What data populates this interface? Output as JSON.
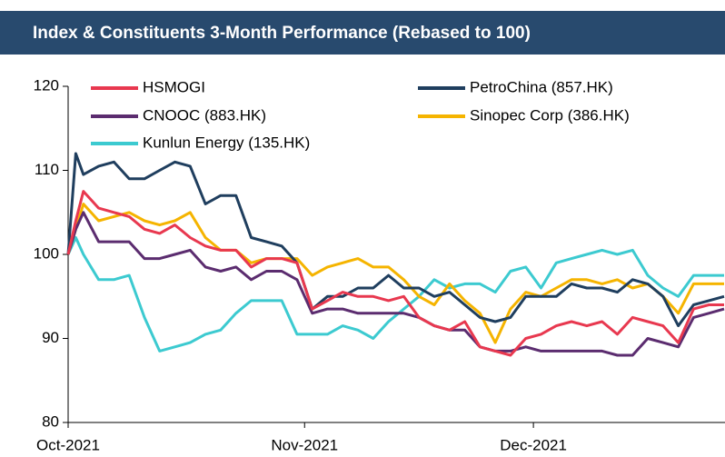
{
  "chart_data": {
    "type": "line",
    "title": "Index & Constituents 3-Month Performance (Rebased to 100)",
    "x": [
      0,
      1,
      2,
      4,
      6,
      8,
      10,
      12,
      14,
      16,
      18,
      20,
      22,
      24,
      26,
      28,
      30,
      32,
      34,
      36,
      38,
      40,
      42,
      44,
      46,
      48,
      50,
      52,
      54,
      56,
      58,
      60,
      62,
      64,
      66,
      68,
      70,
      72,
      74,
      76,
      78,
      80,
      82,
      84,
      86
    ],
    "xlim": [
      0,
      86
    ],
    "xticks": [
      {
        "value": 0,
        "label": "Oct-2021"
      },
      {
        "value": 31,
        "label": "Nov-2021"
      },
      {
        "value": 61,
        "label": "Dec-2021"
      }
    ],
    "ylim": [
      80,
      120
    ],
    "yticks": [
      80,
      90,
      100,
      110,
      120
    ],
    "grid": false,
    "legend": "top-left",
    "series": [
      {
        "name": "HSMOGI",
        "color": "#e8384f",
        "values": [
          100,
          104,
          107.5,
          105.5,
          105,
          104.5,
          103,
          102.5,
          103.5,
          102,
          101,
          100.5,
          100.5,
          98.5,
          99.5,
          99.5,
          99,
          93.5,
          94.5,
          95.5,
          95,
          95,
          94.5,
          95,
          92.5,
          91.5,
          91,
          92,
          89,
          88.5,
          88,
          90,
          90.5,
          91.5,
          92,
          91.5,
          92,
          90.5,
          92.5,
          92,
          91.5,
          89.5,
          93.5,
          94,
          94
        ]
      },
      {
        "name": "PetroChina (857.HK)",
        "color": "#1f3e5e",
        "values": [
          100,
          112,
          109.5,
          110.5,
          111,
          109,
          109,
          110,
          111,
          110.5,
          106,
          107,
          107,
          102,
          101.5,
          101,
          99,
          93.5,
          95,
          95,
          96,
          96,
          97.5,
          96,
          96,
          95,
          95.5,
          94,
          92.5,
          92,
          92.5,
          95,
          95,
          95,
          96.5,
          96,
          96,
          95.5,
          97,
          96.5,
          95,
          91.5,
          94,
          94.5,
          95
        ]
      },
      {
        "name": "CNOOC (883.HK)",
        "color": "#5b2c6f",
        "values": [
          100,
          103,
          105,
          101.5,
          101.5,
          101.5,
          99.5,
          99.5,
          100,
          100.5,
          98.5,
          98,
          98.5,
          97,
          98,
          98,
          97,
          93,
          93.5,
          93.5,
          93,
          93,
          93,
          93,
          92.5,
          91.5,
          91,
          91,
          89,
          88.5,
          88.5,
          89,
          88.5,
          88.5,
          88.5,
          88.5,
          88.5,
          88,
          88,
          90,
          89.5,
          89,
          92.5,
          93,
          93.5
        ]
      },
      {
        "name": "Sinopec Corp (386.HK)",
        "color": "#f5b400",
        "values": [
          100,
          103,
          106,
          104,
          104.5,
          105,
          104,
          103.5,
          104,
          105,
          102,
          100.5,
          100.5,
          99,
          99.5,
          99.5,
          99.5,
          97.5,
          98.5,
          99,
          99.5,
          98.5,
          98.5,
          97,
          95,
          94,
          96.5,
          94.5,
          93,
          89.5,
          93.5,
          95.5,
          95,
          96,
          97,
          97,
          96.5,
          97,
          96,
          96.5,
          95,
          93,
          96.5,
          96.5,
          96.5
        ]
      },
      {
        "name": "Kunlun Energy (135.HK)",
        "color": "#3ccad0",
        "values": [
          100,
          102,
          100,
          97,
          97,
          97.5,
          92.5,
          88.5,
          89,
          89.5,
          90.5,
          91,
          93,
          94.5,
          94.5,
          94.5,
          90.5,
          90.5,
          90.5,
          91.5,
          91,
          90,
          92,
          93.5,
          95,
          97,
          96,
          96.5,
          96.5,
          95.5,
          98,
          98.5,
          96,
          99,
          99.5,
          100,
          100.5,
          100,
          100.5,
          97.5,
          96,
          95,
          97.5,
          97.5,
          97.5
        ]
      }
    ]
  }
}
